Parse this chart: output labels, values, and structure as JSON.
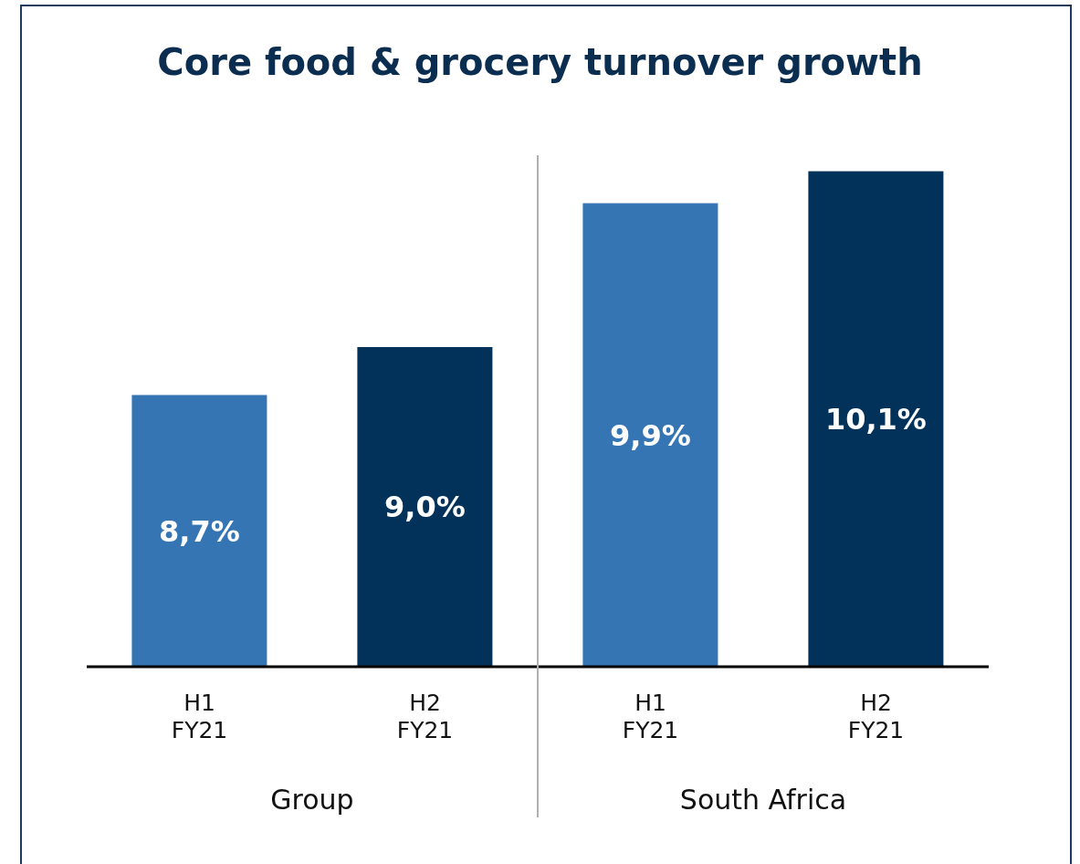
{
  "chart_data": {
    "type": "bar",
    "title": "Core food & grocery turnover growth",
    "categories": [
      "H1\nFY21",
      "H2\nFY21",
      "H1\nFY21",
      "H2\nFY21"
    ],
    "values": [
      8.7,
      9.0,
      9.9,
      10.1
    ],
    "colors": [
      "#3575b4",
      "#02325a",
      "#3575b4",
      "#02325a"
    ],
    "value_labels": [
      "8,7%",
      "9,0%",
      "9,9%",
      "10,1%"
    ],
    "ylim": [
      7,
      10.2
    ],
    "tick_labels": "x",
    "annotations": [
      "Group",
      "South Africa"
    ]
  }
}
